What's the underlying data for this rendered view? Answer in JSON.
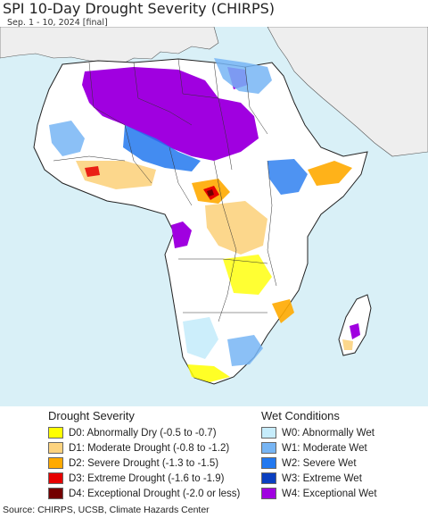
{
  "header": {
    "title": "SPI 10-Day Drought Severity (CHIRPS)",
    "subtitle": "Sep. 1 - 10, 2024 [final]"
  },
  "map": {
    "region": "Africa",
    "ocean_color": "#d9f0f7",
    "land_color": "#ffffff",
    "nonanalyzed_color": "#eeeeee"
  },
  "legend": {
    "drought": {
      "heading": "Drought Severity",
      "items": [
        {
          "label": "D0: Abnormally Dry (-0.5 to -0.7)",
          "color": "#ffff00"
        },
        {
          "label": "D1: Moderate Drought (-0.8 to -1.2)",
          "color": "#fcd37f"
        },
        {
          "label": "D2: Severe Drought (-1.3 to -1.5)",
          "color": "#ffaa00"
        },
        {
          "label": "D3: Extreme Drought (-1.6 to -1.9)",
          "color": "#e60000"
        },
        {
          "label": "D4: Exceptional Drought (-2.0 or less)",
          "color": "#730000"
        }
      ]
    },
    "wet": {
      "heading": "Wet Conditions",
      "items": [
        {
          "label": "W0: Abnormally Wet",
          "color": "#c6ecfb"
        },
        {
          "label": "W1: Moderate Wet",
          "color": "#77b5f4"
        },
        {
          "label": "W2: Severe Wet",
          "color": "#2278ef"
        },
        {
          "label": "W3: Extreme Wet",
          "color": "#0a3fc0"
        },
        {
          "label": "W4: Exceptional Wet",
          "color": "#a000e0"
        }
      ]
    }
  },
  "footer": {
    "source": "Source: CHIRPS, UCSB, Climate Hazards Center"
  }
}
